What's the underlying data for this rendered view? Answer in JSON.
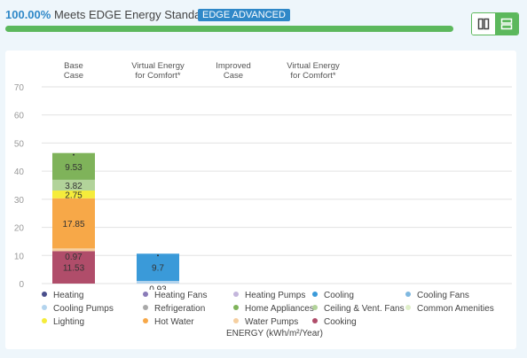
{
  "header": {
    "percent": "100.00%",
    "label": " Meets EDGE Energy Standard",
    "badge": "EDGE ADVANCED",
    "progress": 1.0
  },
  "view_toggle": {
    "icons": [
      "columns-icon",
      "rows-icon"
    ],
    "active": "rows",
    "active_color": "#5cb85c"
  },
  "chart_data": {
    "type": "bar",
    "stacked": true,
    "categories": [
      [
        "Base",
        "Case"
      ],
      [
        "Virtual Energy",
        "for Comfort*"
      ],
      [
        "Improved",
        "Case"
      ],
      [
        "Virtual Energy",
        "for Comfort*"
      ]
    ],
    "ylim": [
      0,
      70
    ],
    "yticks": [
      0,
      10,
      20,
      30,
      40,
      50,
      60,
      70
    ],
    "grid": true,
    "xlabel": "ENERGY (kWh/m²/Year)",
    "series": [
      {
        "name": "Heating",
        "color": "#4a4f8c",
        "values": [
          0,
          0,
          0,
          0
        ]
      },
      {
        "name": "Heating Fans",
        "color": "#8a7bb8",
        "values": [
          0,
          0,
          0,
          0
        ]
      },
      {
        "name": "Heating Pumps",
        "color": "#c4b6dc",
        "values": [
          0,
          0,
          0,
          0
        ]
      },
      {
        "name": "Cooling",
        "color": "#3a9ad9",
        "values": [
          0,
          9.7,
          0,
          0
        ]
      },
      {
        "name": "Cooling Fans",
        "color": "#7fb8e0",
        "values": [
          0,
          0,
          0,
          0
        ]
      },
      {
        "name": "Cooling Pumps",
        "color": "#b3d4ee",
        "values": [
          0,
          0.93,
          0,
          0
        ]
      },
      {
        "name": "Refrigeration",
        "color": "#a9a9a9",
        "values": [
          0,
          0,
          0,
          0
        ]
      },
      {
        "name": "Home Appliances",
        "color": "#7fb35a",
        "values": [
          9.53,
          0,
          0,
          0
        ]
      },
      {
        "name": "Ceiling & Vent. Fans",
        "color": "#b2d39a",
        "values": [
          3.82,
          0,
          0,
          0
        ]
      },
      {
        "name": "Common Amenities",
        "color": "#dfefc8",
        "values": [
          0,
          0,
          0,
          0
        ]
      },
      {
        "name": "Lighting",
        "color": "#f5ec3b",
        "values": [
          2.75,
          0,
          0,
          0
        ]
      },
      {
        "name": "Hot Water",
        "color": "#f7a848",
        "values": [
          17.85,
          0,
          0,
          0
        ]
      },
      {
        "name": "Water Pumps",
        "color": "#f5cfa0",
        "values": [
          0.97,
          0,
          0,
          0
        ]
      },
      {
        "name": "Cooking",
        "color": "#b04d6a",
        "values": [
          11.53,
          0,
          0,
          0
        ]
      }
    ]
  }
}
